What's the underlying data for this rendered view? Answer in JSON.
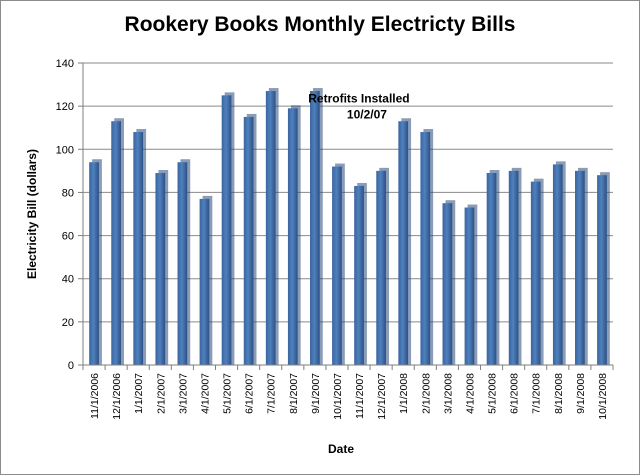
{
  "chart_data": {
    "type": "bar",
    "title": "Rookery Books Monthly Electricty Bills",
    "xlabel": "Date",
    "ylabel": "Electricity Bill (dollars)",
    "ylim": [
      0,
      140
    ],
    "yticks": [
      0,
      20,
      40,
      60,
      80,
      100,
      120,
      140
    ],
    "grid": true,
    "legend": "none",
    "bar_color": "#4f81bd",
    "categories": [
      "11/1/2006",
      "12/1/2006",
      "1/1/2007",
      "2/1/2007",
      "3/1/2007",
      "4/1/2007",
      "5/1/2007",
      "6/1/2007",
      "7/1/2007",
      "8/1/2007",
      "9/1/2007",
      "10/1/2007",
      "11/1/2007",
      "12/1/2007",
      "1/1/2008",
      "2/1/2008",
      "3/1/2008",
      "4/1/2008",
      "5/1/2008",
      "6/1/2008",
      "7/1/2008",
      "8/1/2008",
      "9/1/2008",
      "10/1/2008"
    ],
    "values": [
      94,
      113,
      108,
      89,
      94,
      77,
      125,
      115,
      127,
      119,
      127,
      92,
      83,
      90,
      113,
      108,
      75,
      73,
      89,
      90,
      85,
      93,
      90,
      88
    ],
    "annotation": {
      "lines": [
        "Retrofits Installed",
        "10/2/07"
      ],
      "anchor_category": "10/1/2007",
      "y_value": 129
    }
  }
}
